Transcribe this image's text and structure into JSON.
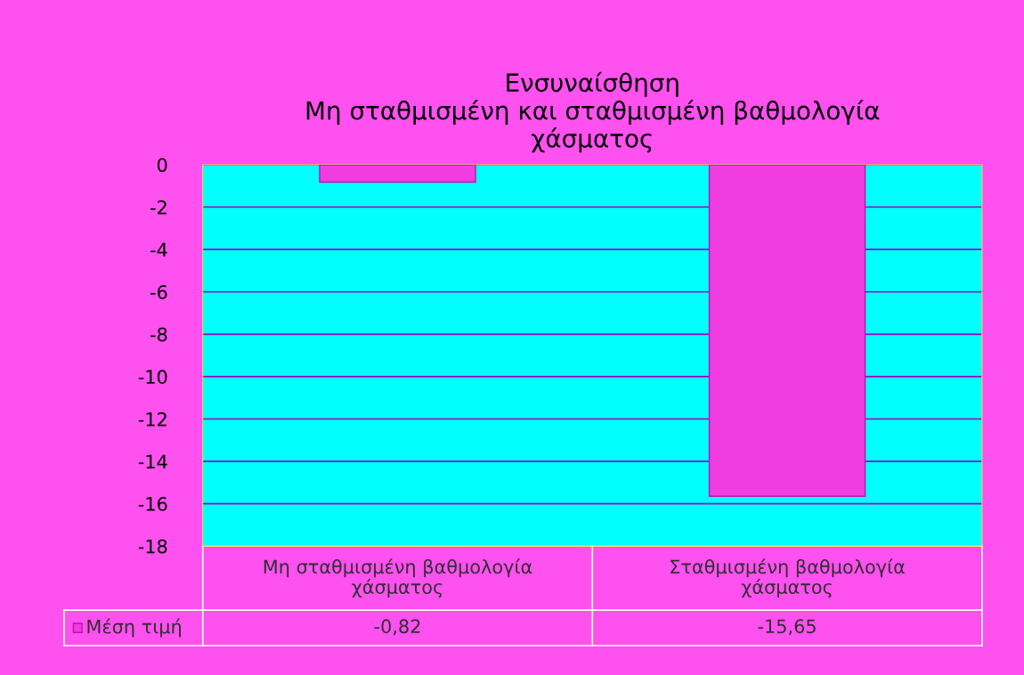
{
  "chart_data": {
    "type": "bar",
    "title": "Ενσυναίσθηση\nΜη σταθμισμένη και σταθμισμένη βαθμολογία\nχάσματος",
    "categories": [
      "Μη σταθμισμένη βαθμολογία\nχάσματος",
      "Σταθμισμένη βαθμολογία\nχάσματος"
    ],
    "series": [
      {
        "name": "Μέση τιμή",
        "color": "#f03ce0",
        "values": [
          -0.82,
          -15.65
        ],
        "value_labels": [
          "-0,82",
          "-15,65"
        ]
      }
    ],
    "ylim": [
      -18,
      0
    ],
    "yticks": [
      0,
      -2,
      -4,
      -6,
      -8,
      -10,
      -12,
      -14,
      -16,
      -18
    ],
    "grid": "y"
  }
}
